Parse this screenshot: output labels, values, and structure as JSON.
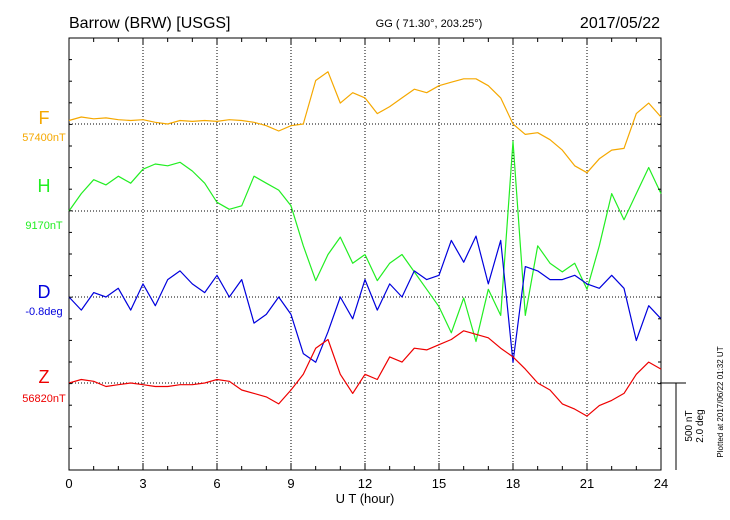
{
  "chart_data": {
    "type": "line",
    "title_left": "Barrow (BRW)  [USGS]",
    "title_center": "GG ( 71.30°, 203.25°)",
    "title_right": "2017/05/22",
    "xlabel": "U T (hour)",
    "xlim": [
      0,
      24
    ],
    "xticks": [
      "0",
      "3",
      "6",
      "9",
      "12",
      "15",
      "18",
      "21",
      "24"
    ],
    "scale_label_1": "500 nT",
    "scale_label_2": "2.0 deg",
    "plotted_note": "Plotted at 2017/06/22 01:32 UT",
    "series": [
      {
        "name": "F",
        "baseline": "57400nT",
        "color": "#f5a800",
        "x": [
          0,
          0.5,
          1,
          1.5,
          2,
          2.5,
          3,
          3.5,
          4,
          4.5,
          5,
          5.5,
          6,
          6.5,
          7,
          7.5,
          8,
          8.5,
          9,
          9.5,
          10,
          10.5,
          11,
          11.5,
          12,
          12.5,
          13,
          13.5,
          14,
          14.5,
          15,
          15.5,
          16,
          16.5,
          17,
          17.5,
          18,
          18.5,
          19,
          19.5,
          20,
          20.5,
          21,
          21.5,
          22,
          22.5,
          23,
          23.5,
          24
        ],
        "values": [
          20,
          40,
          30,
          35,
          25,
          20,
          25,
          10,
          0,
          20,
          15,
          20,
          15,
          25,
          20,
          10,
          -10,
          -40,
          -10,
          0,
          250,
          300,
          120,
          180,
          150,
          60,
          100,
          150,
          200,
          180,
          220,
          240,
          260,
          260,
          220,
          150,
          0,
          -60,
          -50,
          -90,
          -150,
          -240,
          -280,
          -200,
          -150,
          -140,
          60,
          120,
          40
        ]
      },
      {
        "name": "H",
        "baseline": "9170nT",
        "color": "#22ee22",
        "x": [
          0,
          0.5,
          1,
          1.5,
          2,
          2.5,
          3,
          3.5,
          4,
          4.5,
          5,
          5.5,
          6,
          6.5,
          7,
          7.5,
          8,
          8.5,
          9,
          9.5,
          10,
          10.5,
          11,
          11.5,
          12,
          12.5,
          13,
          13.5,
          14,
          14.5,
          15,
          15.5,
          16,
          16.5,
          17,
          17.5,
          18,
          18.5,
          19,
          19.5,
          20,
          20.5,
          21,
          21.5,
          22,
          22.5,
          23,
          23.5,
          24
        ],
        "values": [
          0,
          100,
          180,
          150,
          200,
          160,
          240,
          270,
          260,
          280,
          230,
          160,
          50,
          10,
          30,
          200,
          160,
          120,
          30,
          -200,
          -400,
          -250,
          -150,
          -300,
          -250,
          -400,
          -300,
          -250,
          -350,
          -450,
          -550,
          -700,
          -500,
          -750,
          -450,
          -600,
          400,
          -600,
          -200,
          -300,
          -350,
          -300,
          -450,
          -200,
          100,
          -50,
          100,
          250,
          100
        ]
      },
      {
        "name": "D",
        "baseline": "-0.8deg",
        "color": "#0000dd",
        "x": [
          0,
          0.5,
          1,
          1.5,
          2,
          2.5,
          3,
          3.5,
          4,
          4.5,
          5,
          5.5,
          6,
          6.5,
          7,
          7.5,
          8,
          8.5,
          9,
          9.5,
          10,
          10.5,
          11,
          11.5,
          12,
          12.5,
          13,
          13.5,
          14,
          14.5,
          15,
          15.5,
          16,
          16.5,
          17,
          17.5,
          18,
          18.5,
          19,
          19.5,
          20,
          20.5,
          21,
          21.5,
          22,
          22.5,
          23,
          23.5,
          24
        ],
        "values": [
          0.0,
          -0.3,
          0.1,
          0.0,
          0.2,
          -0.3,
          0.3,
          -0.2,
          0.4,
          0.6,
          0.3,
          0.1,
          0.5,
          0.0,
          0.4,
          -0.6,
          -0.4,
          0.0,
          -0.4,
          -1.3,
          -1.5,
          -0.8,
          0.0,
          -0.5,
          0.4,
          -0.3,
          0.3,
          0.0,
          0.6,
          0.4,
          0.5,
          1.3,
          0.8,
          1.4,
          0.3,
          1.3,
          -1.5,
          0.7,
          0.6,
          0.4,
          0.4,
          0.5,
          0.3,
          0.2,
          0.5,
          0.2,
          -1.0,
          -0.2,
          -0.5
        ]
      },
      {
        "name": "Z",
        "baseline": "56820nT",
        "color": "#ee0000",
        "x": [
          0,
          0.5,
          1,
          1.5,
          2,
          2.5,
          3,
          3.5,
          4,
          4.5,
          5,
          5.5,
          6,
          6.5,
          7,
          7.5,
          8,
          8.5,
          9,
          9.5,
          10,
          10.5,
          11,
          11.5,
          12,
          12.5,
          13,
          13.5,
          14,
          14.5,
          15,
          15.5,
          16,
          16.5,
          17,
          17.5,
          18,
          18.5,
          19,
          19.5,
          20,
          20.5,
          21,
          21.5,
          22,
          22.5,
          23,
          23.5,
          24
        ],
        "values": [
          0,
          20,
          10,
          -20,
          -10,
          0,
          -10,
          -20,
          -20,
          -10,
          -10,
          0,
          20,
          10,
          -40,
          -60,
          -80,
          -120,
          -40,
          50,
          200,
          250,
          50,
          -60,
          50,
          20,
          150,
          120,
          200,
          190,
          220,
          250,
          300,
          280,
          260,
          200,
          150,
          80,
          0,
          -40,
          -120,
          -150,
          -190,
          -130,
          -100,
          -60,
          50,
          120,
          80
        ]
      }
    ]
  }
}
